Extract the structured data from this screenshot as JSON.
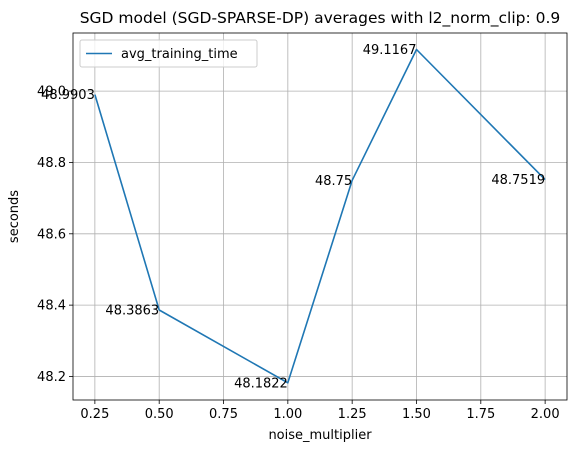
{
  "chart_data": {
    "type": "line",
    "title": "SGD model (SGD-SPARSE-DP) averages with l2_norm_clip: 0.9",
    "xlabel": "noise_multiplier",
    "ylabel": "seconds",
    "xlim": [
      0.165,
      2.085
    ],
    "ylim": [
      48.134,
      49.163
    ],
    "x_ticks": [
      0.25,
      0.5,
      0.75,
      1.0,
      1.25,
      1.5,
      1.75,
      2.0
    ],
    "x_tick_labels": [
      "0.25",
      "0.50",
      "0.75",
      "1.00",
      "1.25",
      "1.50",
      "1.75",
      "2.00"
    ],
    "y_ticks": [
      48.2,
      48.4,
      48.6,
      48.8,
      49.0
    ],
    "y_tick_labels": [
      "48.2",
      "48.4",
      "48.6",
      "48.8",
      "49.0"
    ],
    "grid": true,
    "legend_position": "top-left",
    "series": [
      {
        "name": "avg_training_time",
        "color": "#1f77b4",
        "x": [
          0.25,
          0.5,
          1.0,
          1.25,
          1.5,
          2.0
        ],
        "y": [
          48.9903,
          48.3863,
          48.1822,
          48.75,
          49.1167,
          48.7519
        ],
        "labels": [
          "48.9903",
          "48.3863",
          "48.1822",
          "48.75",
          "49.1167",
          "48.7519"
        ]
      }
    ]
  }
}
